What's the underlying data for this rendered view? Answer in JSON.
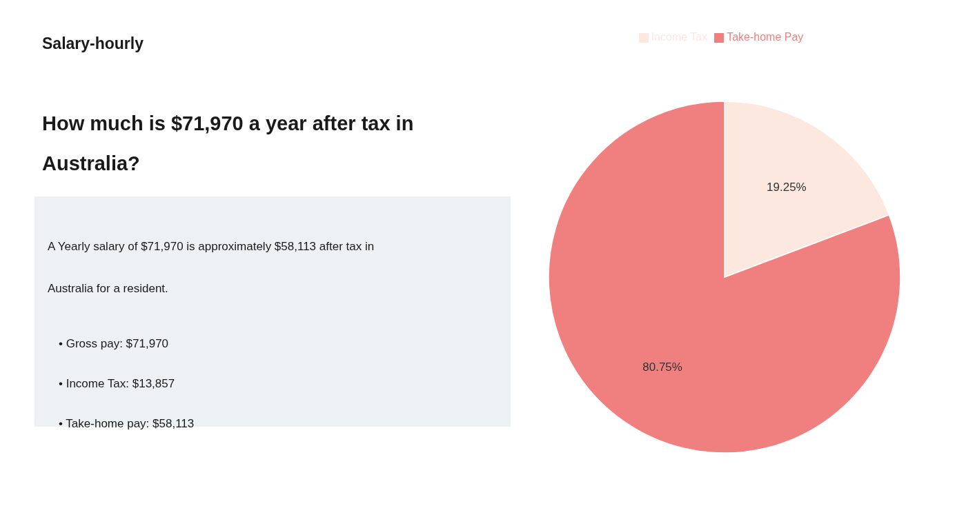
{
  "chart_data": {
    "type": "pie",
    "title": [
      "How much is $71,970 a year after tax in",
      "Australia?"
    ],
    "annotations": [
      "Salary-hourly",
      "A Yearly salary of $71,970 is approximately $58,113 after tax in",
      "Australia for a resident.",
      "•  Gross pay: $71,970",
      "•  Income Tax: $13,857",
      "•  Take-home pay: $58,113"
    ],
    "categories": [
      "Income Tax",
      "Take-home Pay"
    ],
    "values": [
      19.25,
      80.75
    ],
    "value_labels": [
      "19.25%",
      "80.75%"
    ],
    "colors": [
      "#fde8e0",
      "#f08080"
    ],
    "data_labels": true,
    "legend": "top"
  }
}
